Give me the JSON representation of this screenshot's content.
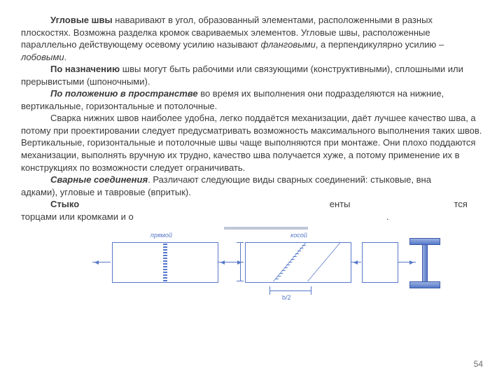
{
  "paragraphs": {
    "p1a": "Угловые швы",
    "p1b": " наваривают в угол, образованный элементами, расположенными в разных",
    "p2": "плоскостях. Возможна разделка кромок свариваемых элементов. Угловые швы, расположенные",
    "p3a": "параллельно действующему осевому усилию называют ",
    "p3b": "фланговыми",
    "p3c": ", а перпендикулярно усилию – ",
    "p3d": "лобовыми",
    "p3e": ".",
    "p4a": "По назначению",
    "p4b": " швы могут быть рабочими или связующими (конструктивными), сплошными или прерывистыми (шпоночными).",
    "p5a": "По положению в пространстве",
    "p5b": " во время их выполнения они подразделяются на нижние,",
    "p6": "вертикальные, горизонтальные и потолочные.",
    "p7": "Сварка нижних швов наиболее удобна, легко поддаётся механизации, даёт лучшее качество шва, а потому при проектировании следует предусматривать возможность максимального выполнения таких швов. Вертикальные, горизонтальные и потолочные швы чаще выполняются при монтаже. Они плохо поддаются механизации, выполнять вручную их трудно, качество шва получается хуже, а потому применение их в конструкциях по возможности следует ограничивать.",
    "p8a": "Сварные соединения",
    "p8b": ". Различают следующие виды сварных соединений: стыковые, вна                                                                                                адками), угловые и тавровые (впритык).",
    "p9a": "Стыко",
    "p9b": "                                                                                                   енты                                         тся торцами или кромками и о                                                                                                    ."
  },
  "figure": {
    "label_left": "прямой",
    "label_right": "косой",
    "dim_b": "b/2"
  },
  "page_number": "54"
}
